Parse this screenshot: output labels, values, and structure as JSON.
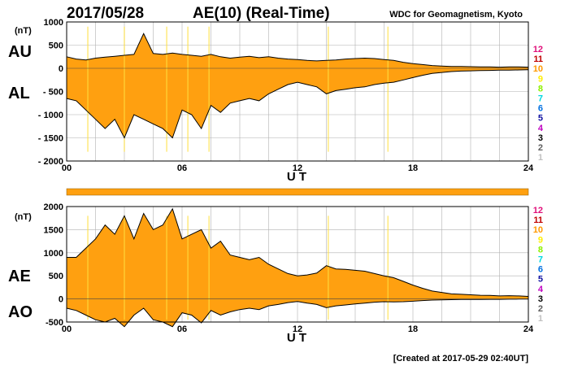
{
  "header": {
    "date": "2017/05/28",
    "title": "AE(10) (Real-Time)",
    "source": "WDC for Geomagnetism, Kyoto",
    "created": "[Created at 2017-05-29 02:40UT]"
  },
  "legend": {
    "stations": [
      "12",
      "11",
      "10",
      "9",
      "8",
      "7",
      "6",
      "5",
      "4",
      "3",
      "2",
      "1"
    ],
    "colors": [
      "#e0107a",
      "#c00000",
      "#ff9900",
      "#ffee00",
      "#8cf000",
      "#00d8e0",
      "#0070e0",
      "#1010a0",
      "#c000c0",
      "#000000",
      "#606060",
      "#c0c0c0"
    ]
  },
  "colors": {
    "fill": "#ffa010",
    "line": "#000000",
    "grid": "#b0b0b0",
    "stripe": "#ffe040"
  },
  "chart_data": [
    {
      "type": "area",
      "title": "AU / AL",
      "series_labels": [
        "AU",
        "AL"
      ],
      "unit": "(nT)",
      "xlabel": "U T",
      "xlim": [
        0,
        24
      ],
      "ylim": [
        -2000,
        1000
      ],
      "x_ticks": [
        "00",
        "06",
        "12",
        "18",
        "24"
      ],
      "y_ticks": [
        "1000",
        "500",
        "0",
        "- 500",
        "- 1000",
        "- 1500",
        "- 2000"
      ],
      "x": [
        0,
        0.5,
        1,
        1.5,
        2,
        2.5,
        3,
        3.5,
        4,
        4.5,
        5,
        5.5,
        6,
        6.5,
        7,
        7.5,
        8,
        8.5,
        9,
        9.5,
        10,
        10.5,
        11,
        11.5,
        12,
        12.5,
        13,
        13.5,
        14,
        14.5,
        15,
        15.5,
        16,
        16.5,
        17,
        17.5,
        18,
        18.5,
        19,
        19.5,
        20,
        20.5,
        21,
        21.5,
        22,
        22.5,
        23,
        23.5,
        24
      ],
      "series": [
        {
          "name": "AU",
          "values": [
            250,
            200,
            180,
            220,
            240,
            260,
            280,
            300,
            750,
            320,
            300,
            330,
            300,
            280,
            260,
            300,
            250,
            220,
            240,
            260,
            230,
            250,
            220,
            200,
            190,
            170,
            160,
            170,
            180,
            200,
            210,
            220,
            210,
            190,
            170,
            130,
            100,
            80,
            60,
            50,
            40,
            40,
            35,
            30,
            30,
            25,
            30,
            30,
            25
          ]
        },
        {
          "name": "AL",
          "values": [
            -650,
            -700,
            -900,
            -1100,
            -1300,
            -1100,
            -1500,
            -1000,
            -1100,
            -1200,
            -1300,
            -1500,
            -900,
            -1000,
            -1300,
            -800,
            -950,
            -750,
            -700,
            -650,
            -700,
            -550,
            -450,
            -350,
            -300,
            -350,
            -400,
            -550,
            -480,
            -450,
            -420,
            -400,
            -350,
            -320,
            -300,
            -250,
            -200,
            -150,
            -110,
            -90,
            -70,
            -60,
            -55,
            -50,
            -45,
            -40,
            -40,
            -35,
            -30
          ]
        }
      ]
    },
    {
      "type": "area",
      "title": "AE / AO",
      "series_labels": [
        "AE",
        "AO"
      ],
      "unit": "(nT)",
      "xlabel": "U T",
      "xlim": [
        0,
        24
      ],
      "ylim": [
        -500,
        2000
      ],
      "x_ticks": [
        "00",
        "06",
        "12",
        "18",
        "24"
      ],
      "y_ticks": [
        "2000",
        "1500",
        "1000",
        "500",
        "0",
        "-500"
      ],
      "x": [
        0,
        0.5,
        1,
        1.5,
        2,
        2.5,
        3,
        3.5,
        4,
        4.5,
        5,
        5.5,
        6,
        6.5,
        7,
        7.5,
        8,
        8.5,
        9,
        9.5,
        10,
        10.5,
        11,
        11.5,
        12,
        12.5,
        13,
        13.5,
        14,
        14.5,
        15,
        15.5,
        16,
        16.5,
        17,
        17.5,
        18,
        18.5,
        19,
        19.5,
        20,
        20.5,
        21,
        21.5,
        22,
        22.5,
        23,
        23.5,
        24
      ],
      "series": [
        {
          "name": "AE",
          "values": [
            900,
            900,
            1100,
            1300,
            1600,
            1400,
            1800,
            1300,
            1850,
            1500,
            1600,
            1950,
            1300,
            1400,
            1500,
            1100,
            1250,
            950,
            900,
            850,
            900,
            750,
            650,
            550,
            500,
            520,
            560,
            720,
            650,
            640,
            620,
            600,
            550,
            500,
            460,
            380,
            300,
            230,
            170,
            140,
            110,
            100,
            90,
            80,
            75,
            65,
            70,
            65,
            55
          ]
        },
        {
          "name": "AO",
          "values": [
            -200,
            -250,
            -350,
            -450,
            -500,
            -420,
            -600,
            -350,
            -200,
            -450,
            -500,
            -600,
            -300,
            -350,
            -520,
            -250,
            -350,
            -280,
            -230,
            -200,
            -230,
            -150,
            -120,
            -80,
            -55,
            -90,
            -120,
            -190,
            -150,
            -130,
            -110,
            -90,
            -70,
            -60,
            -65,
            -60,
            -50,
            -35,
            -25,
            -20,
            -15,
            -10,
            -10,
            -10,
            -8,
            -8,
            -5,
            -3,
            -3
          ]
        }
      ]
    }
  ]
}
